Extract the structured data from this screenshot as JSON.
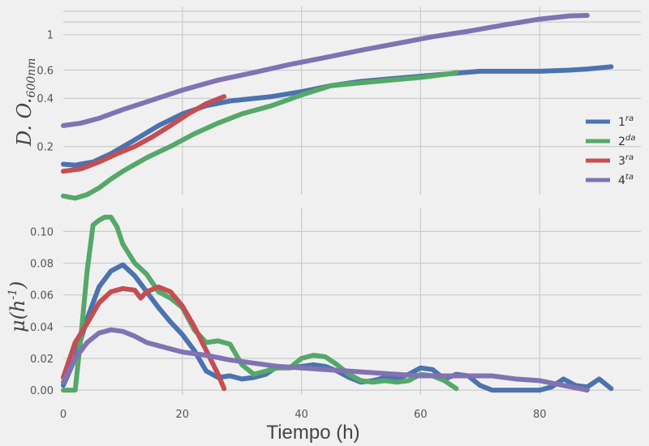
{
  "chart_data": [
    {
      "type": "line",
      "title": "",
      "xlabel": "",
      "ylabel": "D. O.",
      "ylabel_sub": "600nm",
      "yscale": "log",
      "xlim": [
        0,
        97
      ],
      "ylim": [
        0.1,
        1.5
      ],
      "yticks": [
        {
          "value": 0.2,
          "label": "0.2"
        },
        {
          "value": 0.4,
          "label": "0.4"
        },
        {
          "value": 0.6,
          "label": "0.6"
        },
        {
          "value": 1.0,
          "label": "1"
        }
      ],
      "ygrid_extra": [
        1.2,
        1.4
      ],
      "xgrid": [
        20,
        40,
        60,
        80
      ],
      "grid": true,
      "legend": "right",
      "series": [
        {
          "name": "1",
          "sup": "ra",
          "color": "#4c72b0",
          "x": [
            0,
            2,
            5,
            8,
            12,
            16,
            20,
            24,
            28,
            35,
            40,
            45,
            50,
            55,
            60,
            65,
            70,
            75,
            80,
            85,
            88,
            92
          ],
          "y": [
            0.155,
            0.153,
            0.16,
            0.18,
            0.22,
            0.27,
            0.32,
            0.36,
            0.385,
            0.41,
            0.44,
            0.48,
            0.51,
            0.53,
            0.55,
            0.57,
            0.59,
            0.59,
            0.59,
            0.6,
            0.61,
            0.63
          ]
        },
        {
          "name": "2",
          "sup": "da",
          "color": "#55a868",
          "x": [
            0,
            2,
            4,
            6,
            8,
            10,
            14,
            18,
            22,
            26,
            30,
            35,
            40,
            45,
            50,
            55,
            60,
            65,
            66
          ],
          "y": [
            0.098,
            0.095,
            0.1,
            0.11,
            0.125,
            0.14,
            0.17,
            0.2,
            0.24,
            0.28,
            0.32,
            0.36,
            0.42,
            0.48,
            0.5,
            0.52,
            0.54,
            0.57,
            0.58
          ]
        },
        {
          "name": "3",
          "sup": "ra",
          "color": "#c44e52",
          "x": [
            0,
            3,
            6,
            9,
            12,
            15,
            18,
            21,
            24,
            27
          ],
          "y": [
            0.14,
            0.145,
            0.16,
            0.18,
            0.2,
            0.23,
            0.27,
            0.32,
            0.37,
            0.41
          ]
        },
        {
          "name": "4",
          "sup": "ta",
          "color": "#8172b2",
          "x": [
            0,
            3,
            6,
            10,
            14,
            20,
            26,
            32,
            38,
            44,
            50,
            56,
            62,
            68,
            74,
            80,
            85,
            88
          ],
          "y": [
            0.27,
            0.28,
            0.3,
            0.34,
            0.38,
            0.45,
            0.52,
            0.58,
            0.65,
            0.72,
            0.8,
            0.88,
            0.97,
            1.05,
            1.15,
            1.25,
            1.31,
            1.32
          ]
        }
      ]
    },
    {
      "type": "line",
      "title": "",
      "xlabel": "Tiempo (h)",
      "ylabel": "μ(h",
      "ylabel_sup": "-1",
      "ylabel_end": ")",
      "xlim": [
        0,
        97
      ],
      "ylim": [
        -0.003,
        0.115
      ],
      "yticks": [
        {
          "value": 0.0,
          "label": "0.00"
        },
        {
          "value": 0.02,
          "label": "0.02"
        },
        {
          "value": 0.04,
          "label": "0.04"
        },
        {
          "value": 0.06,
          "label": "0.06"
        },
        {
          "value": 0.08,
          "label": "0.08"
        },
        {
          "value": 0.1,
          "label": "0.10"
        }
      ],
      "xticks": [
        {
          "value": 0,
          "label": "0"
        },
        {
          "value": 20,
          "label": "20"
        },
        {
          "value": 40,
          "label": "40"
        },
        {
          "value": 60,
          "label": "60"
        },
        {
          "value": 80,
          "label": "80"
        }
      ],
      "grid": true,
      "series": [
        {
          "name": "1",
          "color": "#4c72b0",
          "x": [
            0,
            2,
            4,
            6,
            8,
            10,
            12,
            14,
            16,
            18,
            20,
            22,
            24,
            26,
            28,
            30,
            32,
            34,
            36,
            38,
            40,
            42,
            44,
            46,
            48,
            50,
            52,
            54,
            56,
            58,
            60,
            62,
            64,
            66,
            68,
            70,
            72,
            74,
            76,
            78,
            80,
            82,
            84,
            86,
            88,
            90,
            92
          ],
          "y": [
            0.003,
            0.02,
            0.045,
            0.065,
            0.075,
            0.079,
            0.072,
            0.062,
            0.052,
            0.043,
            0.035,
            0.025,
            0.012,
            0.008,
            0.009,
            0.007,
            0.008,
            0.01,
            0.015,
            0.014,
            0.015,
            0.016,
            0.015,
            0.012,
            0.008,
            0.005,
            0.006,
            0.008,
            0.007,
            0.01,
            0.014,
            0.013,
            0.007,
            0.01,
            0.009,
            0.003,
            0.0,
            0.0,
            0.0,
            0.0,
            0.0,
            0.002,
            0.007,
            0.003,
            0.002,
            0.007,
            0.001
          ]
        },
        {
          "name": "2",
          "color": "#55a868",
          "x": [
            0,
            2,
            3,
            4,
            5,
            6,
            7,
            8,
            9,
            10,
            12,
            14,
            16,
            18,
            20,
            22,
            24,
            26,
            28,
            30,
            32,
            34,
            36,
            38,
            40,
            42,
            44,
            46,
            48,
            50,
            52,
            54,
            56,
            58,
            60,
            62,
            64,
            66
          ],
          "y": [
            0.0,
            0.0,
            0.035,
            0.075,
            0.104,
            0.107,
            0.109,
            0.109,
            0.103,
            0.092,
            0.08,
            0.073,
            0.062,
            0.058,
            0.052,
            0.038,
            0.03,
            0.031,
            0.029,
            0.016,
            0.01,
            0.012,
            0.014,
            0.014,
            0.02,
            0.022,
            0.021,
            0.016,
            0.01,
            0.006,
            0.005,
            0.006,
            0.005,
            0.006,
            0.01,
            0.009,
            0.006,
            0.001
          ]
        },
        {
          "name": "3",
          "color": "#c44e52",
          "x": [
            0,
            2,
            4,
            6,
            8,
            10,
            12,
            13,
            14,
            16,
            18,
            20,
            22,
            24,
            26,
            27
          ],
          "y": [
            0.008,
            0.03,
            0.042,
            0.055,
            0.062,
            0.064,
            0.063,
            0.058,
            0.062,
            0.065,
            0.062,
            0.053,
            0.04,
            0.025,
            0.01,
            0.001
          ]
        },
        {
          "name": "4",
          "color": "#8172b2",
          "x": [
            0,
            2,
            4,
            6,
            8,
            10,
            12,
            14,
            16,
            20,
            24,
            28,
            32,
            36,
            40,
            44,
            48,
            52,
            56,
            60,
            64,
            68,
            72,
            76,
            80,
            84,
            88
          ],
          "y": [
            0.005,
            0.02,
            0.03,
            0.036,
            0.038,
            0.037,
            0.034,
            0.03,
            0.028,
            0.024,
            0.022,
            0.019,
            0.017,
            0.015,
            0.014,
            0.013,
            0.012,
            0.011,
            0.01,
            0.009,
            0.009,
            0.009,
            0.009,
            0.007,
            0.006,
            0.003,
            0.0
          ]
        }
      ]
    }
  ]
}
